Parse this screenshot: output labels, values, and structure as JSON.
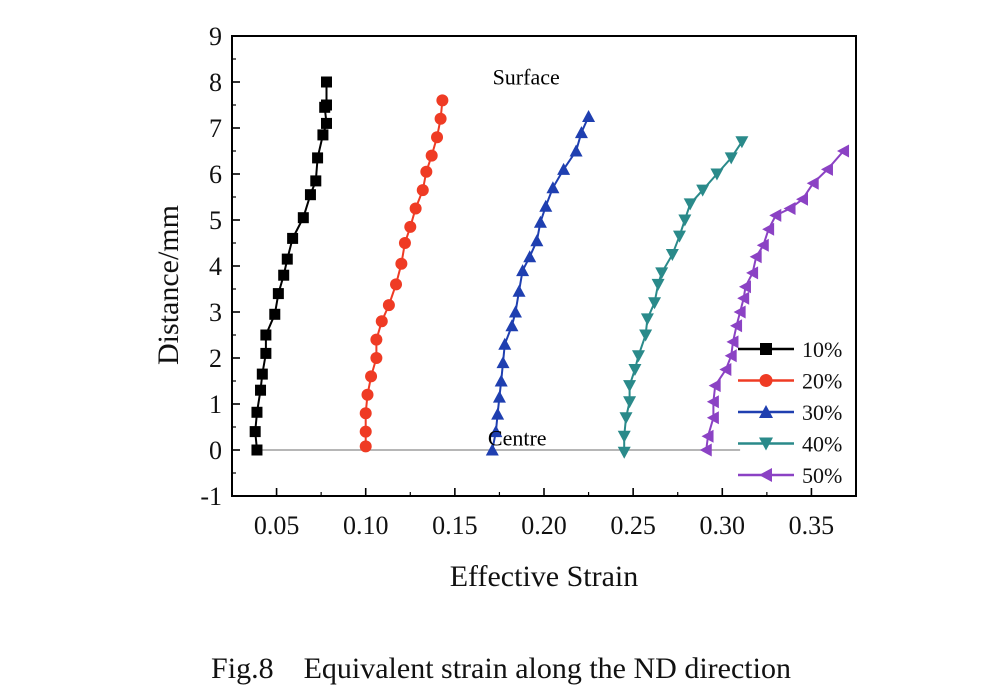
{
  "chart_data": {
    "type": "line",
    "xlabel": "Effective Strain",
    "ylabel": "Distance/mm",
    "xlim": [
      0.025,
      0.375
    ],
    "ylim": [
      -1,
      9
    ],
    "xticks": [
      "0.05",
      "0.10",
      "0.15",
      "0.20",
      "0.25",
      "0.30",
      "0.35"
    ],
    "xtick_values": [
      0.05,
      0.1,
      0.15,
      0.2,
      0.25,
      0.3,
      0.35
    ],
    "yticks": [
      "-1",
      "0",
      "1",
      "2",
      "3",
      "4",
      "5",
      "6",
      "7",
      "8",
      "9"
    ],
    "ytick_values": [
      -1,
      0,
      1,
      2,
      3,
      4,
      5,
      6,
      7,
      8,
      9
    ],
    "grid": false,
    "legend_position": "bottom-right",
    "annotations": [
      {
        "text": "Surface",
        "x": 0.19,
        "y": 8.1
      },
      {
        "text": "Centre",
        "x": 0.185,
        "y": 0.25
      }
    ],
    "reference_line_y": 0,
    "series": [
      {
        "name": "10%",
        "color": "#000000",
        "marker": "square",
        "points": [
          [
            0.039,
            0.0
          ],
          [
            0.038,
            0.4
          ],
          [
            0.039,
            0.82
          ],
          [
            0.041,
            1.3
          ],
          [
            0.042,
            1.65
          ],
          [
            0.044,
            2.1
          ],
          [
            0.044,
            2.5
          ],
          [
            0.049,
            2.95
          ],
          [
            0.051,
            3.4
          ],
          [
            0.054,
            3.8
          ],
          [
            0.056,
            4.15
          ],
          [
            0.059,
            4.6
          ],
          [
            0.065,
            5.05
          ],
          [
            0.069,
            5.55
          ],
          [
            0.072,
            5.85
          ],
          [
            0.073,
            6.35
          ],
          [
            0.076,
            6.85
          ],
          [
            0.078,
            7.1
          ],
          [
            0.077,
            7.45
          ],
          [
            0.078,
            7.5
          ],
          [
            0.078,
            8.0
          ]
        ]
      },
      {
        "name": "20%",
        "color": "#ef3b24",
        "marker": "circle",
        "points": [
          [
            0.1,
            0.08
          ],
          [
            0.1,
            0.4
          ],
          [
            0.1,
            0.8
          ],
          [
            0.101,
            1.2
          ],
          [
            0.103,
            1.6
          ],
          [
            0.106,
            2.0
          ],
          [
            0.106,
            2.4
          ],
          [
            0.109,
            2.8
          ],
          [
            0.113,
            3.15
          ],
          [
            0.117,
            3.6
          ],
          [
            0.12,
            4.05
          ],
          [
            0.122,
            4.5
          ],
          [
            0.125,
            4.85
          ],
          [
            0.128,
            5.25
          ],
          [
            0.132,
            5.65
          ],
          [
            0.134,
            6.05
          ],
          [
            0.137,
            6.4
          ],
          [
            0.14,
            6.8
          ],
          [
            0.142,
            7.2
          ],
          [
            0.143,
            7.6
          ]
        ]
      },
      {
        "name": "30%",
        "color": "#1f3fb0",
        "marker": "triangle-up",
        "points": [
          [
            0.171,
            0.0
          ],
          [
            0.173,
            0.4
          ],
          [
            0.174,
            0.78
          ],
          [
            0.175,
            1.15
          ],
          [
            0.176,
            1.5
          ],
          [
            0.177,
            1.9
          ],
          [
            0.178,
            2.3
          ],
          [
            0.182,
            2.7
          ],
          [
            0.184,
            3.0
          ],
          [
            0.186,
            3.45
          ],
          [
            0.188,
            3.9
          ],
          [
            0.192,
            4.2
          ],
          [
            0.196,
            4.55
          ],
          [
            0.198,
            4.95
          ],
          [
            0.201,
            5.3
          ],
          [
            0.205,
            5.7
          ],
          [
            0.211,
            6.1
          ],
          [
            0.218,
            6.5
          ],
          [
            0.221,
            6.9
          ],
          [
            0.225,
            7.25
          ]
        ]
      },
      {
        "name": "40%",
        "color": "#2a8a8a",
        "marker": "triangle-down",
        "points": [
          [
            0.245,
            -0.05
          ],
          [
            0.245,
            0.3
          ],
          [
            0.246,
            0.7
          ],
          [
            0.248,
            1.05
          ],
          [
            0.248,
            1.4
          ],
          [
            0.251,
            1.75
          ],
          [
            0.253,
            2.05
          ],
          [
            0.257,
            2.5
          ],
          [
            0.258,
            2.85
          ],
          [
            0.262,
            3.2
          ],
          [
            0.264,
            3.6
          ],
          [
            0.266,
            3.85
          ],
          [
            0.272,
            4.25
          ],
          [
            0.276,
            4.65
          ],
          [
            0.279,
            5.0
          ],
          [
            0.282,
            5.35
          ],
          [
            0.289,
            5.65
          ],
          [
            0.297,
            6.0
          ],
          [
            0.305,
            6.35
          ],
          [
            0.311,
            6.7
          ]
        ]
      },
      {
        "name": "50%",
        "color": "#8b42c4",
        "marker": "triangle-left",
        "points": [
          [
            0.291,
            0.0
          ],
          [
            0.292,
            0.3
          ],
          [
            0.295,
            0.7
          ],
          [
            0.295,
            1.05
          ],
          [
            0.296,
            1.4
          ],
          [
            0.302,
            1.75
          ],
          [
            0.305,
            2.05
          ],
          [
            0.306,
            2.35
          ],
          [
            0.308,
            2.7
          ],
          [
            0.31,
            3.0
          ],
          [
            0.312,
            3.3
          ],
          [
            0.313,
            3.55
          ],
          [
            0.317,
            3.85
          ],
          [
            0.319,
            4.2
          ],
          [
            0.323,
            4.45
          ],
          [
            0.326,
            4.8
          ],
          [
            0.33,
            5.1
          ],
          [
            0.338,
            5.25
          ],
          [
            0.345,
            5.45
          ],
          [
            0.351,
            5.8
          ],
          [
            0.359,
            6.1
          ],
          [
            0.368,
            6.5
          ]
        ]
      }
    ]
  },
  "caption": {
    "label": "Fig.8",
    "text": "Equivalent strain along the ND direction"
  }
}
